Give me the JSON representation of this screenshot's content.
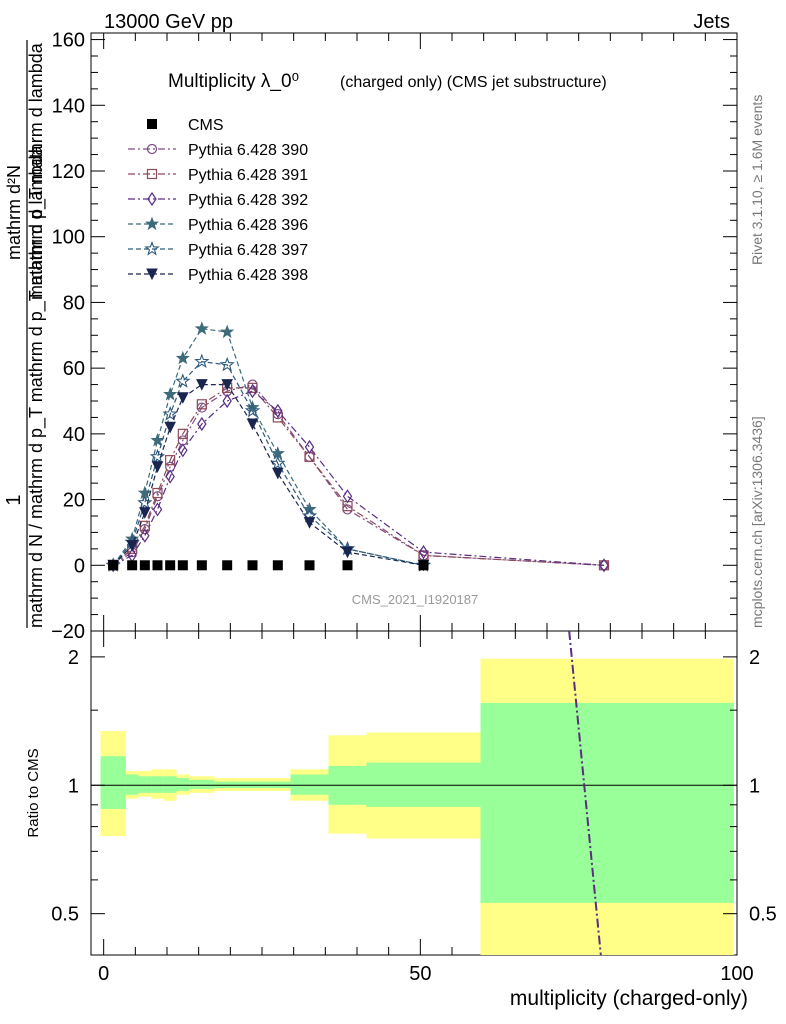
{
  "header": {
    "energy_label": "13000 GeV pp",
    "process_label": "Jets",
    "side_label_top": "Rivet 3.1.10, ≥ 1.6M events",
    "side_label_bottom": "mcplots.cern.ch [arXiv:1306.3436]",
    "analysis_id": "CMS_2021_I1920187"
  },
  "chart_data": [
    {
      "type": "line",
      "title": "Multiplicity λ_0⁰",
      "subtitle": "(charged only) (CMS jet substructure)",
      "ylabel_fraction_numerator": "1",
      "ylabel_fraction_denominator": "mathrm d N / mathrm d p_T mathrm d p_T mathrm d lambda",
      "ylabel_rhs_numerator": "mathrm d²N",
      "ylabel_rhs_denominator": "mathrm d p_T mathrm d lambda",
      "ylim": [
        -20,
        162
      ],
      "yticks": [
        -20,
        0,
        20,
        40,
        60,
        80,
        100,
        120,
        140,
        160
      ],
      "xlim": [
        -2,
        100
      ],
      "grid": false,
      "legend_position": "top-left",
      "cms": {
        "name": "CMS",
        "color": "#000000",
        "x": [
          1.5,
          4.5,
          6.5,
          8.5,
          10.5,
          12.5,
          15.5,
          19.5,
          23.5,
          27.5,
          32.5,
          38.5,
          50.5
        ],
        "y": [
          0,
          0,
          0,
          0,
          0,
          0,
          0,
          0,
          0,
          0,
          0,
          0,
          0
        ]
      },
      "series": [
        {
          "name": "Pythia 6.428 390",
          "color": "#7d4b82",
          "marker": "circle",
          "dash": "7,3,2,3",
          "x": [
            1.5,
            4.5,
            6.5,
            8.5,
            10.5,
            12.5,
            15.5,
            19.5,
            23.5,
            27.5,
            32.5,
            38.5,
            50.5,
            79
          ],
          "y": [
            0,
            4,
            11,
            21,
            30,
            38,
            48,
            53,
            55,
            46,
            33,
            17,
            3,
            0
          ]
        },
        {
          "name": "Pythia 6.428 391",
          "color": "#8c4a5a",
          "marker": "square",
          "dash": "7,3,2,3",
          "x": [
            1.5,
            4.5,
            6.5,
            8.5,
            10.5,
            12.5,
            15.5,
            19.5,
            23.5,
            27.5,
            32.5,
            38.5,
            50.5,
            79
          ],
          "y": [
            0,
            5,
            12,
            22,
            32,
            40,
            49,
            54,
            54,
            45,
            33,
            18,
            3,
            0
          ]
        },
        {
          "name": "Pythia 6.428 392",
          "color": "#5a2d82",
          "marker": "diamond",
          "dash": "7,3,2,3",
          "x": [
            1.5,
            4.5,
            6.5,
            8.5,
            10.5,
            12.5,
            15.5,
            19.5,
            23.5,
            27.5,
            32.5,
            38.5,
            50.5,
            79
          ],
          "y": [
            0,
            3,
            9,
            17,
            27,
            35,
            43,
            50,
            53,
            47,
            36,
            21,
            4,
            0
          ]
        },
        {
          "name": "Pythia 6.428 396",
          "color": "#3d6b7a",
          "marker": "star-filled",
          "dash": "5,3",
          "x": [
            1.5,
            4.5,
            6.5,
            8.5,
            10.5,
            12.5,
            15.5,
            19.5,
            23.5,
            27.5,
            32.5,
            38.5,
            50.5
          ],
          "y": [
            0,
            8,
            22,
            38,
            52,
            63,
            72,
            71,
            48,
            34,
            17,
            5,
            0
          ]
        },
        {
          "name": "Pythia 6.428 397",
          "color": "#2e5a7d",
          "marker": "star-open",
          "dash": "5,3",
          "x": [
            1.5,
            4.5,
            6.5,
            8.5,
            10.5,
            12.5,
            15.5,
            19.5,
            23.5,
            27.5,
            32.5,
            38.5,
            50.5
          ],
          "y": [
            0,
            7,
            19,
            33,
            46,
            56,
            62,
            61,
            47,
            31,
            15,
            5,
            0
          ]
        },
        {
          "name": "Pythia 6.428 398",
          "color": "#1a2550",
          "marker": "triangle-down",
          "dash": "5,3",
          "x": [
            1.5,
            4.5,
            6.5,
            8.5,
            10.5,
            12.5,
            15.5,
            19.5,
            23.5,
            27.5,
            32.5,
            38.5,
            50.5
          ],
          "y": [
            0,
            6,
            16,
            30,
            42,
            51,
            55,
            55,
            43,
            28,
            13,
            4,
            0
          ]
        }
      ]
    },
    {
      "type": "area",
      "ylabel": "Ratio to CMS",
      "xlabel": "multiplicity (charged-only)",
      "ylim": [
        0.4,
        2.3
      ],
      "yscale": "log",
      "yticks": [
        0.5,
        1,
        2
      ],
      "xlim": [
        -2,
        100
      ],
      "xticks": [
        0,
        50,
        100
      ],
      "reference_line": 1,
      "bin_edges": [
        -0.5,
        3.5,
        5.5,
        7.5,
        9.5,
        11.5,
        13.5,
        17.5,
        21.5,
        25.5,
        29.5,
        35.5,
        41.5,
        59.5,
        99.5
      ],
      "green_band_low": [
        0.88,
        0.95,
        0.96,
        0.96,
        0.96,
        0.97,
        0.98,
        0.985,
        0.985,
        0.985,
        0.95,
        0.9,
        0.89,
        0.53
      ],
      "green_band_high": [
        1.17,
        1.06,
        1.05,
        1.05,
        1.05,
        1.04,
        1.03,
        1.02,
        1.02,
        1.02,
        1.06,
        1.11,
        1.13,
        1.56
      ],
      "yellow_band_low": [
        0.76,
        0.93,
        0.94,
        0.93,
        0.92,
        0.95,
        0.96,
        0.97,
        0.97,
        0.97,
        0.92,
        0.77,
        0.75,
        0.4
      ],
      "yellow_band_high": [
        1.34,
        1.08,
        1.08,
        1.09,
        1.09,
        1.06,
        1.05,
        1.04,
        1.04,
        1.04,
        1.09,
        1.31,
        1.33,
        1.98
      ],
      "green_color": "#99ff99",
      "yellow_color": "#ffff88",
      "ratio_line": {
        "color": "#5a2d82",
        "x": [
          73.5,
          78.5
        ],
        "y": [
          2.4,
          0.38
        ]
      }
    }
  ]
}
